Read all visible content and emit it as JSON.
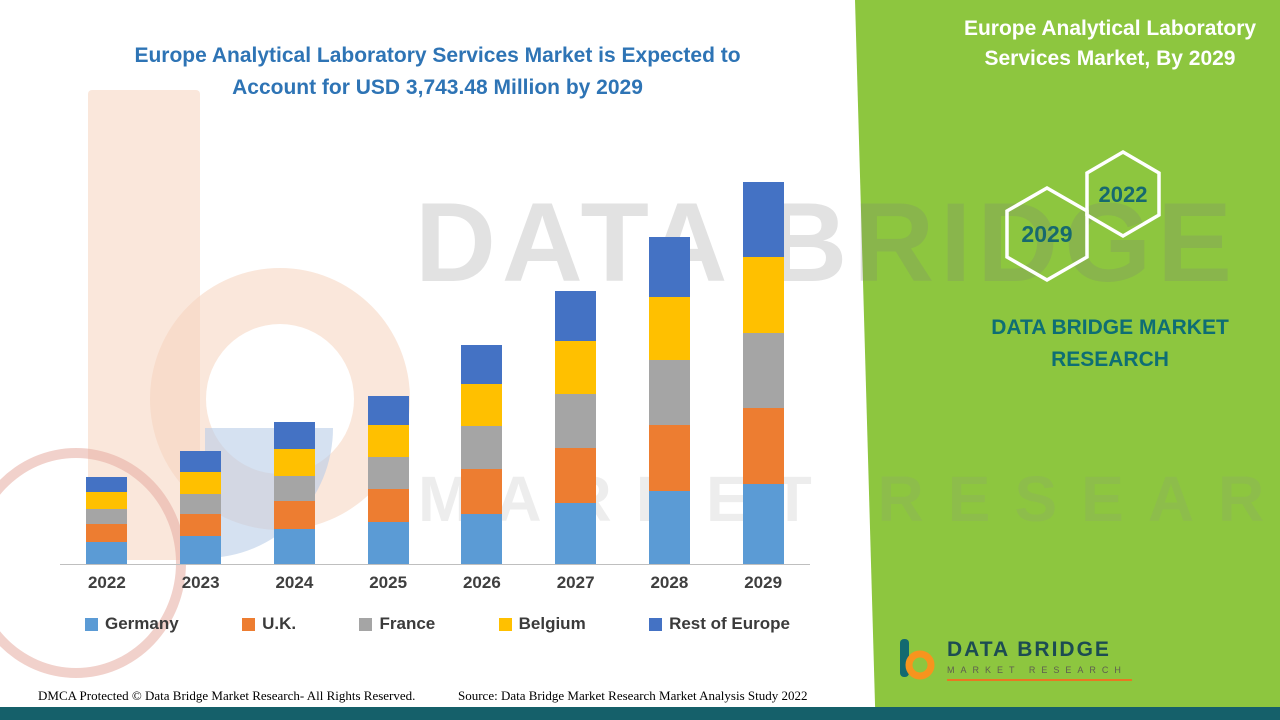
{
  "header": {
    "title_lines": [
      "Europe Analytical Laboratory Services Market is Expected to",
      "Account for USD 3,743.48 Million by 2029"
    ],
    "title_color": "#2e74b5"
  },
  "side_panel": {
    "title": "Europe Analytical Laboratory Services Market, By 2029",
    "hexagon_left": "2029",
    "hexagon_right": "2022",
    "brand": "DATA BRIDGE MARKET RESEARCH",
    "background_color": "#8dc63f",
    "teal_color": "#0e6e74"
  },
  "watermark": {
    "line1": "DATA BRIDGE",
    "line2": "MARKET RESEARCH"
  },
  "logo": {
    "name": "DATA BRIDGE",
    "sub": "MARKET RESEARCH"
  },
  "footer": {
    "dmca": "DMCA Protected © Data Bridge Market Research- All Rights Reserved.",
    "source": "Source: Data Bridge Market Research Market Analysis Study 2022"
  },
  "chart_data": {
    "type": "bar",
    "stacked": true,
    "title": "Europe Analytical Laboratory Services Market is Expected to Account for USD 3,743.48 Million by 2029",
    "unit": "USD Million",
    "categories": [
      "2022",
      "2023",
      "2024",
      "2025",
      "2026",
      "2027",
      "2028",
      "2029"
    ],
    "series": [
      {
        "name": "Germany",
        "color": "#5b9bd5",
        "values": [
          215,
          275,
          340,
          410,
          490,
          600,
          715,
          785
        ]
      },
      {
        "name": "U.K.",
        "color": "#ed7d31",
        "values": [
          175,
          215,
          275,
          330,
          440,
          540,
          645,
          740
        ]
      },
      {
        "name": "France",
        "color": "#a5a5a5",
        "values": [
          150,
          195,
          250,
          305,
          420,
          530,
          635,
          735
        ]
      },
      {
        "name": "Belgium",
        "color": "#ffc000",
        "values": [
          165,
          215,
          265,
          315,
          410,
          515,
          625,
          750
        ]
      },
      {
        "name": "Rest of Europe",
        "color": "#4472c4",
        "values": [
          145,
          205,
          258,
          290,
          390,
          495,
          585,
          733.48
        ]
      }
    ],
    "totals": [
      850,
      1105,
      1388,
      1650,
      2150,
      2680,
      3205,
      3743.48
    ],
    "ylim": [
      0,
      3743.48
    ],
    "grid": false,
    "legend_position": "bottom",
    "xlabel": "",
    "ylabel": ""
  }
}
